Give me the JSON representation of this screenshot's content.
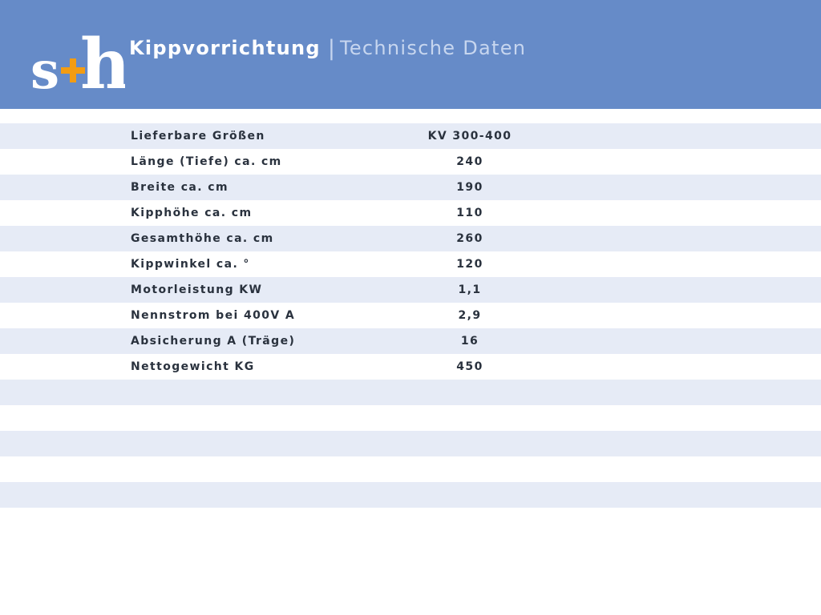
{
  "header": {
    "logo": {
      "alt": "s+h",
      "colors": {
        "letters": "#ffffff",
        "plus": "#f39c12"
      }
    },
    "title": "Kippvorrichtung",
    "separator": "|",
    "subtitle": "Technische Daten",
    "background_color": "#668bc8"
  },
  "table": {
    "stripe_color": "#e6ebf6",
    "rows": [
      {
        "label": "Lieferbare Größen",
        "value": "KV 300-400"
      },
      {
        "label": "Länge (Tiefe) ca. cm",
        "value": "240"
      },
      {
        "label": "Breite ca. cm",
        "value": "190"
      },
      {
        "label": "Kipphöhe ca. cm",
        "value": "110"
      },
      {
        "label": "Gesamthöhe ca. cm",
        "value": "260"
      },
      {
        "label": "Kippwinkel ca. °",
        "value": "120"
      },
      {
        "label": "Motorleistung KW",
        "value": "1,1"
      },
      {
        "label": "Nennstrom bei 400V A",
        "value": "2,9"
      },
      {
        "label": "Absicherung A (Träge)",
        "value": "16"
      },
      {
        "label": "Nettogewicht KG",
        "value": "450"
      },
      {
        "label": "",
        "value": ""
      },
      {
        "label": "",
        "value": ""
      },
      {
        "label": "",
        "value": ""
      },
      {
        "label": "",
        "value": ""
      },
      {
        "label": "",
        "value": ""
      }
    ]
  }
}
